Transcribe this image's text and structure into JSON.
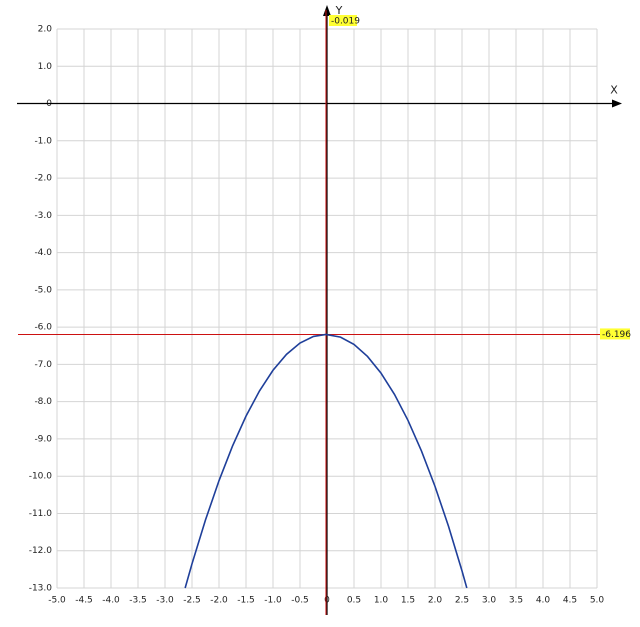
{
  "chart_data": {
    "type": "line",
    "x_label": "X",
    "y_label": "Y",
    "x": [
      -2.627,
      -2.5,
      -2.25,
      -2.0,
      -1.75,
      -1.5,
      -1.25,
      -1.0,
      -0.75,
      -0.5,
      -0.25,
      -0.019,
      0.25,
      0.5,
      0.75,
      1.0,
      1.25,
      1.5,
      1.75,
      2.0,
      2.25,
      2.5,
      2.589
    ],
    "series": [
      {
        "color": "#1f3f9a",
        "values": [
          -13.0,
          -12.351,
          -11.173,
          -10.12,
          -9.192,
          -8.389,
          -7.711,
          -7.158,
          -6.73,
          -6.427,
          -6.249,
          -6.196,
          -6.268,
          -6.465,
          -6.787,
          -7.234,
          -7.806,
          -8.503,
          -9.325,
          -10.272,
          -11.344,
          -12.541,
          -12.998
        ]
      }
    ],
    "crosshair": {
      "x": -0.019,
      "y": -6.196,
      "color": "#cc1111"
    },
    "xlim": [
      -5,
      5
    ],
    "ylim": [
      -13,
      2
    ],
    "grid": true,
    "xticks": [
      {
        "value": -5,
        "label": "-5.0"
      },
      {
        "value": -4.5,
        "label": "-4.5"
      },
      {
        "value": -4,
        "label": "-4.0"
      },
      {
        "value": -3.5,
        "label": "-3.5"
      },
      {
        "value": -3,
        "label": "-3.0"
      },
      {
        "value": -2.5,
        "label": "-2.5"
      },
      {
        "value": -2,
        "label": "-2.0"
      },
      {
        "value": -1.5,
        "label": "-1.5"
      },
      {
        "value": -1,
        "label": "-1.0"
      },
      {
        "value": -0.5,
        "label": "-0.5"
      },
      0,
      0.5,
      {
        "value": 1,
        "label": "1.0"
      },
      1.5,
      {
        "value": 2,
        "label": "2.0"
      },
      2.5,
      {
        "value": 3,
        "label": "3.0"
      },
      3.5,
      {
        "value": 4,
        "label": "4.0"
      },
      4.5,
      {
        "value": 5,
        "label": "5.0"
      }
    ],
    "yticks": [
      {
        "value": 2,
        "label": "2.0"
      },
      {
        "value": 1,
        "label": "1.0"
      },
      0,
      {
        "value": -1,
        "label": "-1.0"
      },
      {
        "value": -2,
        "label": "-2.0"
      },
      {
        "value": -3,
        "label": "-3.0"
      },
      {
        "value": -4,
        "label": "-4.0"
      },
      {
        "value": -5,
        "label": "-5.0"
      },
      {
        "value": -6,
        "label": "-6.0"
      },
      {
        "value": -7,
        "label": "-7.0"
      },
      {
        "value": -8,
        "label": "-8.0"
      },
      {
        "value": -9,
        "label": "-9.0"
      },
      {
        "value": -10,
        "label": "-10.0"
      },
      {
        "value": -11,
        "label": "-11.0"
      },
      {
        "value": -12,
        "label": "-12.0"
      },
      {
        "value": -13,
        "label": "-13.0"
      }
    ]
  }
}
